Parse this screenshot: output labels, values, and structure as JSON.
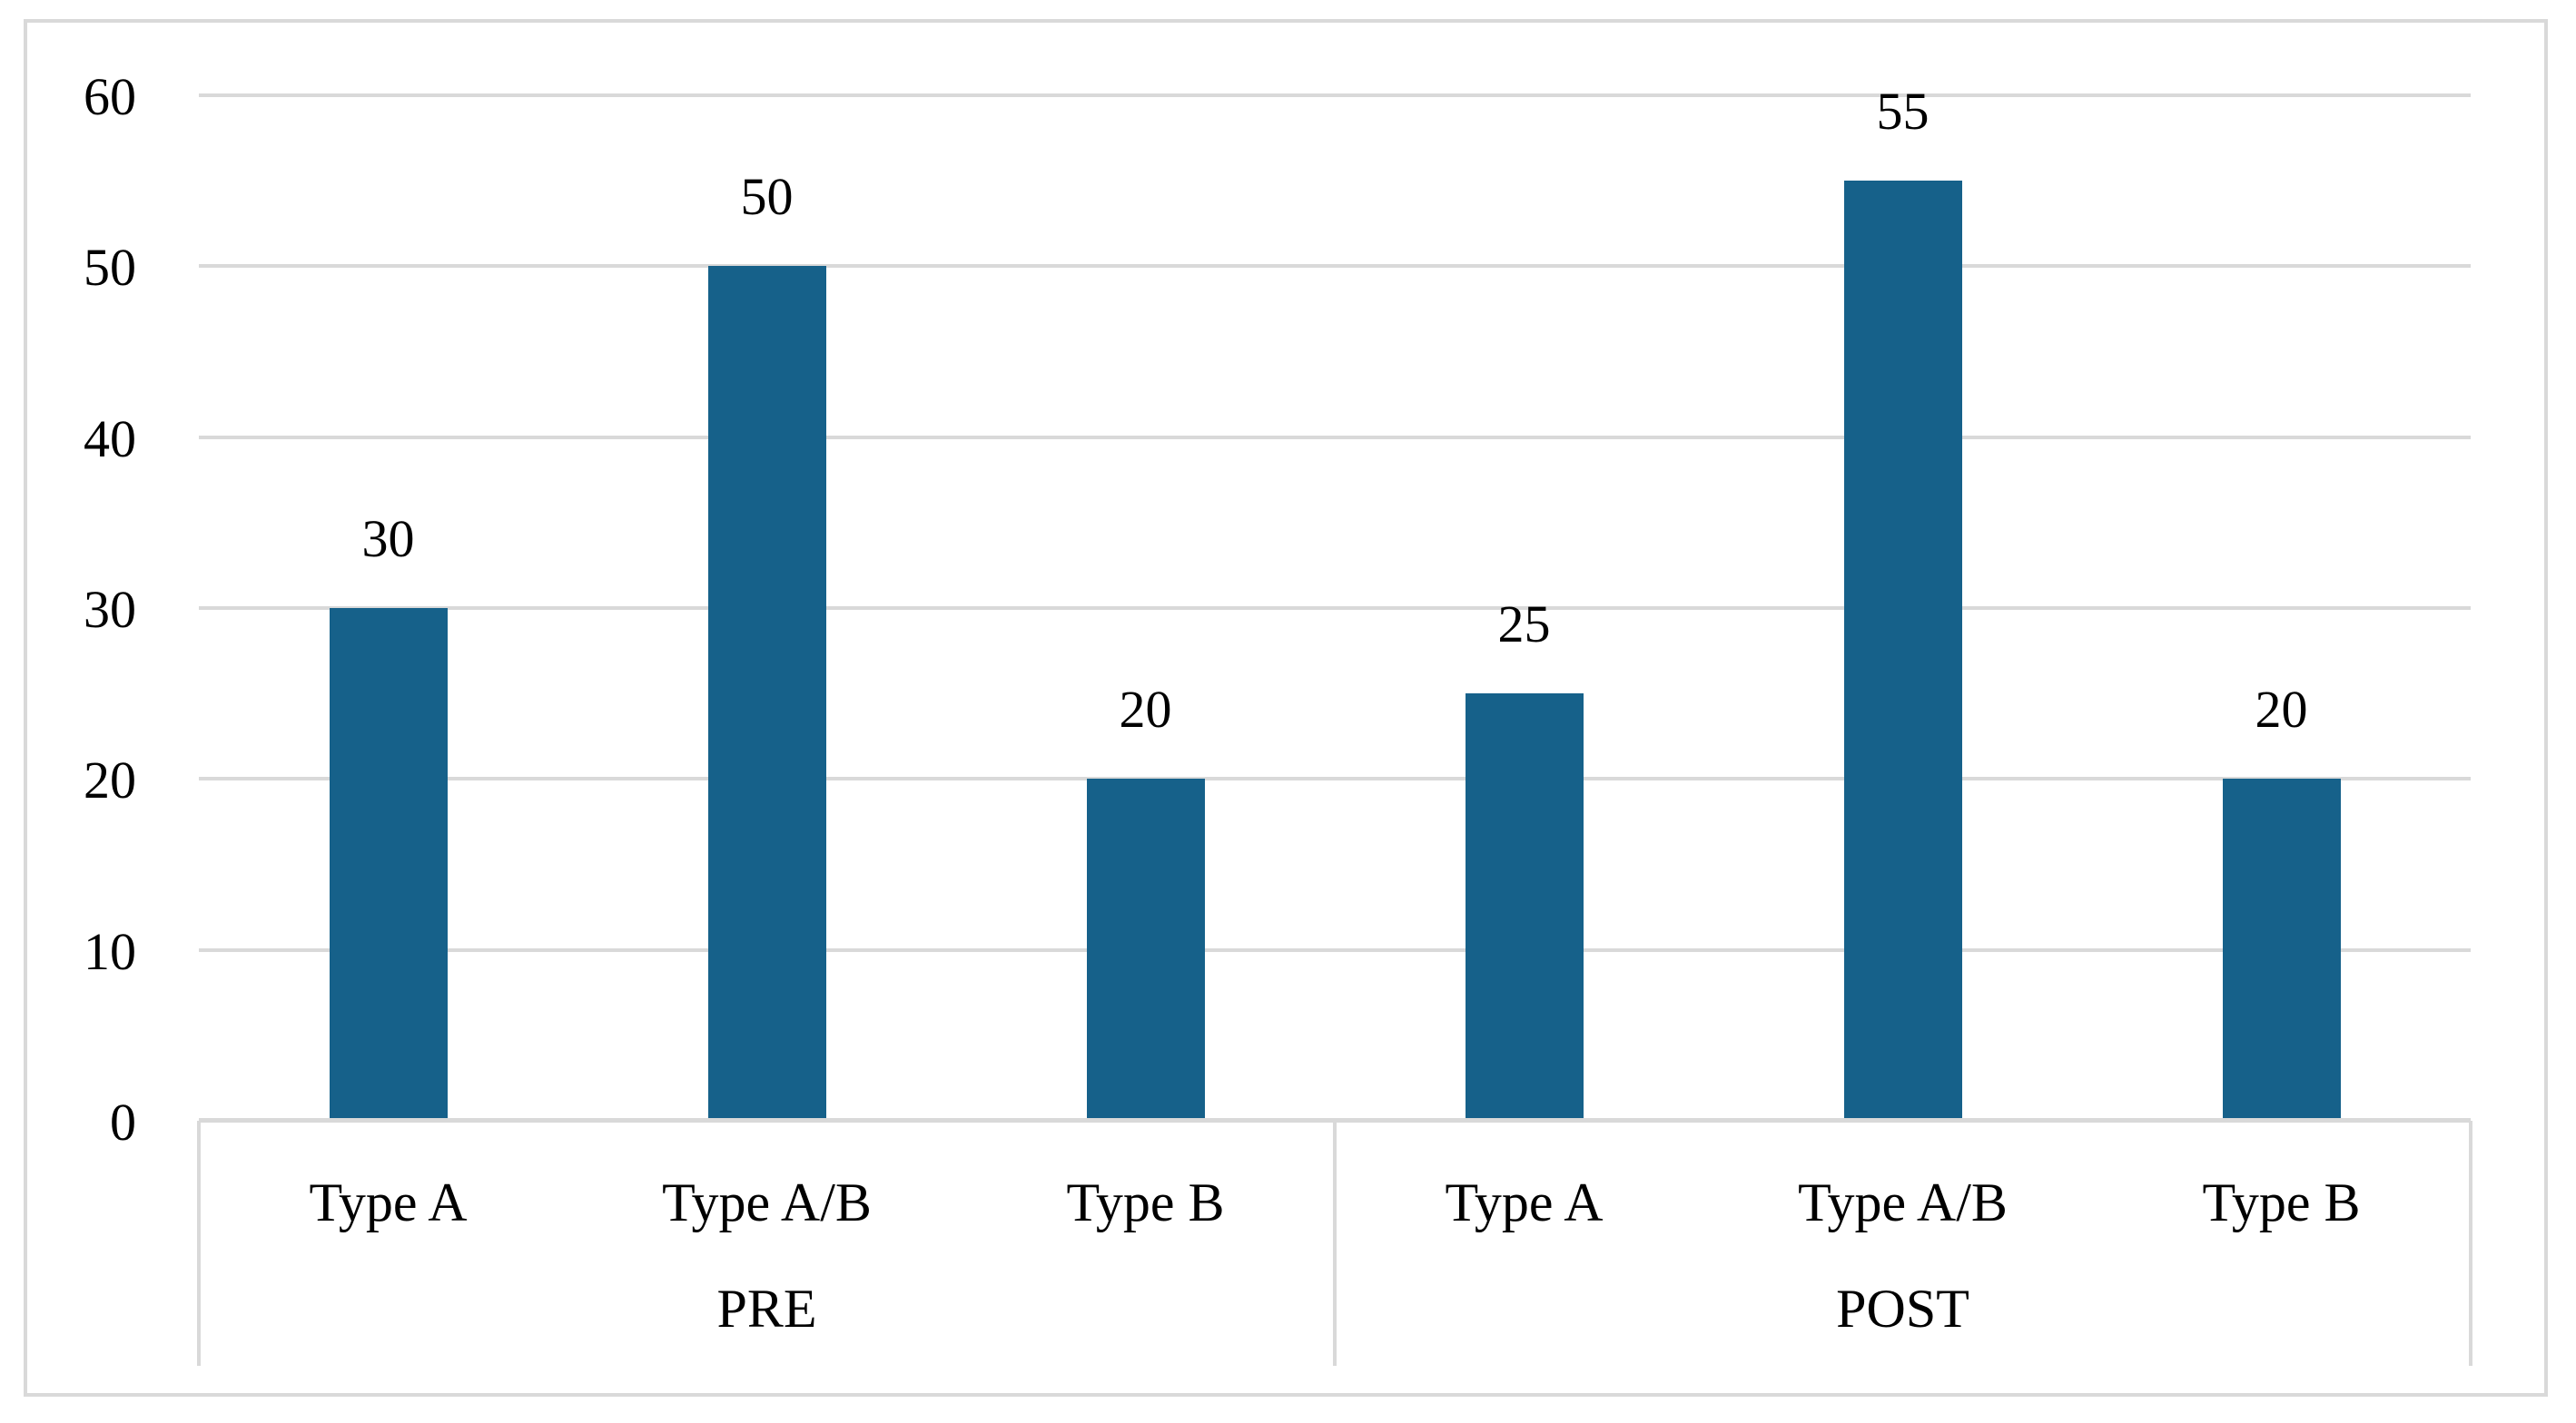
{
  "chart_data": {
    "type": "bar",
    "title": "",
    "xlabel": "",
    "ylabel": "",
    "groups": [
      "PRE",
      "POST"
    ],
    "categories": [
      "Type A",
      "Type A/B",
      "Type B"
    ],
    "series": [
      {
        "name": "PRE",
        "values": [
          30,
          50,
          20
        ]
      },
      {
        "name": "POST",
        "values": [
          25,
          55,
          20
        ]
      }
    ],
    "data_labels": true,
    "y_ticks": [
      0,
      10,
      20,
      30,
      40,
      50,
      60
    ],
    "ylim": [
      0,
      60
    ],
    "grid": "horizontal",
    "legend_position": "none",
    "colors": {
      "bar": "#16618A",
      "gridline": "#D9D9D9",
      "axis_box_border": "#D9D9D9",
      "frame_border": "#D9D9D9",
      "text": "#000000",
      "background": "#FFFFFF"
    }
  }
}
